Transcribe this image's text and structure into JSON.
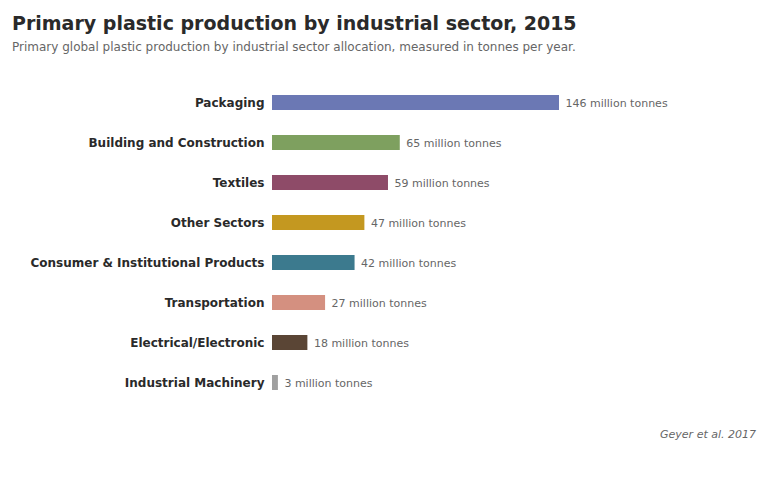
{
  "chart_data": {
    "type": "bar",
    "orientation": "horizontal",
    "title": "Primary plastic production by industrial sector, 2015",
    "subtitle": "Primary global plastic production by industrial sector allocation, measured in tonnes per year.",
    "source": "Geyer et al. 2017",
    "categories": [
      "Packaging",
      "Building and Construction",
      "Textiles",
      "Other Sectors",
      "Consumer & Institutional Products",
      "Transportation",
      "Electrical/Electronic",
      "Industrial Machinery"
    ],
    "values": [
      146,
      65,
      59,
      47,
      42,
      27,
      18,
      3
    ],
    "value_labels": [
      "146 million tonnes",
      "65 million tonnes",
      "59 million tonnes",
      "47 million tonnes",
      "42 million tonnes",
      "27 million tonnes",
      "18 million tonnes",
      "3 million tonnes"
    ],
    "colors": [
      "#6b78b4",
      "#7ea05f",
      "#8e4b68",
      "#c49820",
      "#3c7a8e",
      "#d49080",
      "#5a4535",
      "#a0a0a0"
    ],
    "xlim": [
      0,
      175
    ],
    "data_labels": true,
    "tick_labels": "y",
    "grid": false
  }
}
